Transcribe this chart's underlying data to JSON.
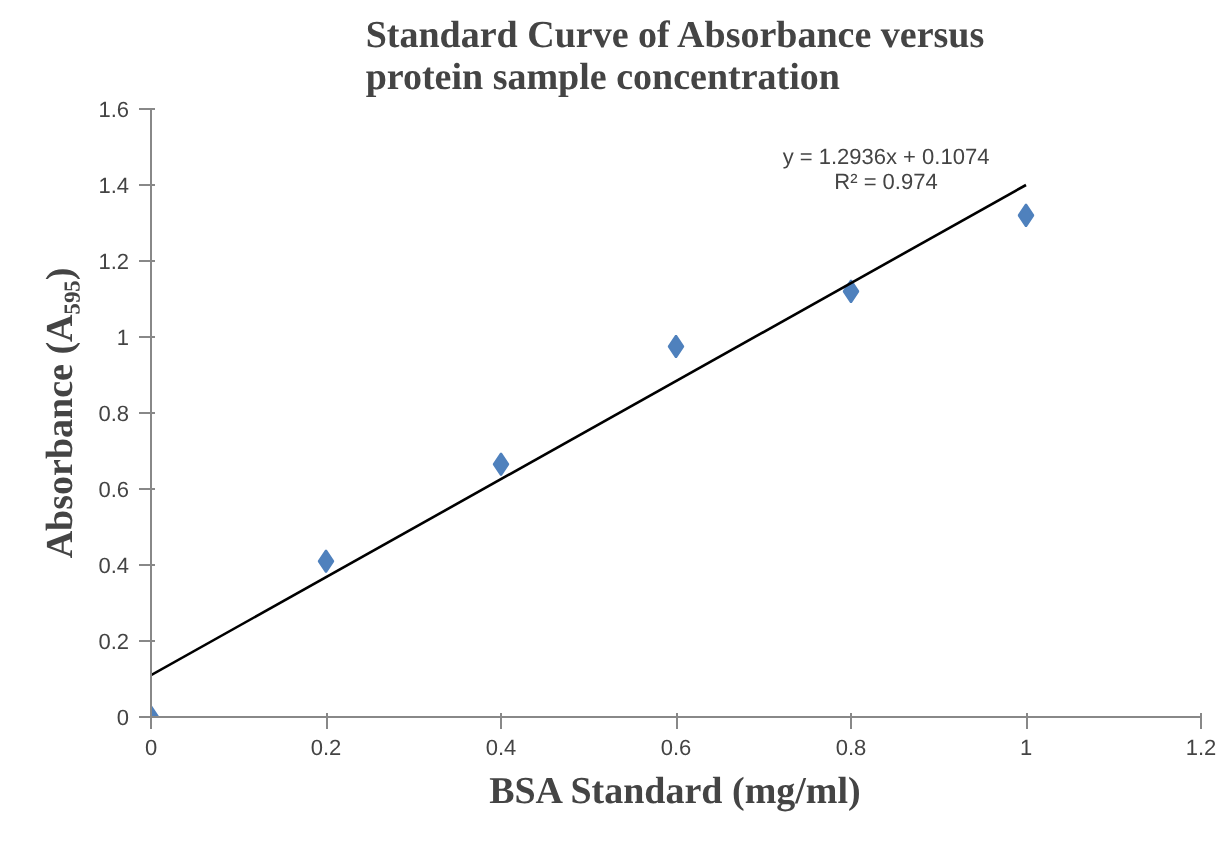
{
  "chart_data": {
    "type": "scatter",
    "title": "Standard Curve of Absorbance versus\nprotein sample concentration",
    "xlabel": "BSA Standard (mg/ml)",
    "ylabel": "Absorbance (A₅₉₅)",
    "annotations": [
      "y = 1.2936x + 0.1074",
      "R² = 0.974"
    ],
    "series": [
      {
        "color": "#4f81bd",
        "marker": "diamond",
        "x": [
          0,
          0.2,
          0.4,
          0.6,
          0.8,
          1.0
        ],
        "values": [
          0,
          0.41,
          0.665,
          0.975,
          1.12,
          1.32
        ]
      },
      {
        "type": "line",
        "color": "#000000",
        "x": [
          0,
          1.0
        ],
        "values": [
          0.11,
          1.4
        ]
      }
    ],
    "xlim": [
      0,
      1.2
    ],
    "xticks": [
      0,
      0.2,
      0.4,
      0.6,
      0.8,
      1,
      1.2
    ],
    "ylim": [
      0,
      1.6
    ],
    "yticks": [
      0,
      0.2,
      0.4,
      0.6,
      0.8,
      1,
      1.2,
      1.4,
      1.6
    ],
    "grid": false
  }
}
